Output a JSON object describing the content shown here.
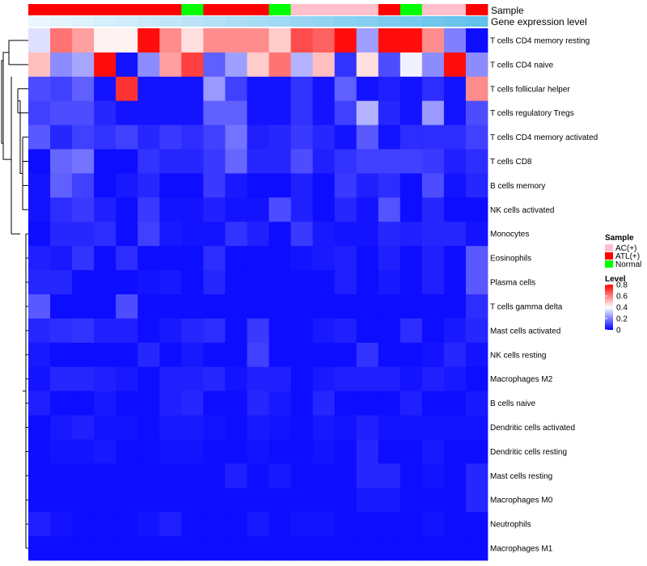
{
  "chart_data": {
    "type": "heatmap",
    "title": "",
    "annotations": {
      "sample_label": "Sample",
      "gene_expression_label": "Gene expression level",
      "sample_groups": [
        "ATL(+)",
        "ATL(+)",
        "ATL(+)",
        "ATL(+)",
        "ATL(+)",
        "ATL(+)",
        "ATL(+)",
        "Normal",
        "ATL(+)",
        "ATL(+)",
        "ATL(+)",
        "Normal",
        "AC(+)",
        "AC(+)",
        "AC(+)",
        "AC(+)",
        "ATL(+)",
        "Normal",
        "AC(+)",
        "AC(+)",
        "ATL(+)"
      ],
      "gene_expression_levels": [
        0.02,
        0.05,
        0.08,
        0.11,
        0.14,
        0.17,
        0.2,
        0.23,
        0.26,
        0.29,
        0.32,
        0.35,
        0.38,
        0.41,
        0.44,
        0.47,
        0.5,
        0.53,
        0.56,
        0.59,
        0.62
      ]
    },
    "rows": [
      "T cells CD4 memory resting",
      "T cells CD4 naive",
      "T cells follicular helper",
      "T cells regulatory  Tregs",
      "T cells CD4 memory activated",
      "T cells CD8",
      "B cells memory",
      "NK cells activated",
      "Monocytes",
      "Eosinophils",
      "Plasma cells",
      "T cells gamma delta",
      "Mast cells activated",
      "NK cells resting",
      "Macrophages M2",
      "B cells naive",
      "Dendritic cells activated",
      "Dendritic cells resting",
      "Mast cells resting",
      "Macrophages M0",
      "Neutrophils",
      "Macrophages M1"
    ],
    "values": [
      [
        0.35,
        0.62,
        0.55,
        0.42,
        0.42,
        0.78,
        0.58,
        0.45,
        0.58,
        0.58,
        0.58,
        0.48,
        0.68,
        0.65,
        0.78,
        0.25,
        0.78,
        0.78,
        0.58,
        0.2,
        0.02
      ],
      [
        0.5,
        0.22,
        0.26,
        0.78,
        0.03,
        0.22,
        0.55,
        0.7,
        0.15,
        0.25,
        0.48,
        0.62,
        0.28,
        0.5,
        0.08,
        0.45,
        0.12,
        0.38,
        0.22,
        0.78,
        0.22
      ],
      [
        0.12,
        0.1,
        0.15,
        0.03,
        0.72,
        0.03,
        0.03,
        0.03,
        0.24,
        0.1,
        0.03,
        0.03,
        0.08,
        0.03,
        0.15,
        0.03,
        0.05,
        0.03,
        0.07,
        0.03,
        0.58
      ],
      [
        0.1,
        0.12,
        0.12,
        0.06,
        0.03,
        0.03,
        0.03,
        0.03,
        0.15,
        0.15,
        0.03,
        0.03,
        0.08,
        0.03,
        0.1,
        0.28,
        0.06,
        0.03,
        0.24,
        0.03,
        0.12
      ],
      [
        0.14,
        0.06,
        0.1,
        0.08,
        0.1,
        0.06,
        0.09,
        0.07,
        0.1,
        0.18,
        0.05,
        0.06,
        0.09,
        0.06,
        0.03,
        0.14,
        0.03,
        0.07,
        0.07,
        0.07,
        0.1
      ],
      [
        0.02,
        0.16,
        0.18,
        0.02,
        0.02,
        0.08,
        0.06,
        0.06,
        0.09,
        0.16,
        0.06,
        0.06,
        0.12,
        0.05,
        0.08,
        0.1,
        0.1,
        0.1,
        0.09,
        0.05,
        0.07
      ],
      [
        0.03,
        0.15,
        0.1,
        0.02,
        0.04,
        0.06,
        0.02,
        0.02,
        0.09,
        0.04,
        0.02,
        0.02,
        0.05,
        0.02,
        0.09,
        0.05,
        0.07,
        0.02,
        0.12,
        0.03,
        0.06
      ],
      [
        0.03,
        0.07,
        0.09,
        0.05,
        0.02,
        0.09,
        0.03,
        0.03,
        0.05,
        0.03,
        0.03,
        0.12,
        0.05,
        0.02,
        0.06,
        0.03,
        0.13,
        0.02,
        0.06,
        0.02,
        0.02
      ],
      [
        0.02,
        0.06,
        0.06,
        0.07,
        0.02,
        0.1,
        0.04,
        0.03,
        0.03,
        0.08,
        0.05,
        0.02,
        0.09,
        0.04,
        0.03,
        0.03,
        0.06,
        0.05,
        0.06,
        0.06,
        0.03
      ],
      [
        0.05,
        0.04,
        0.08,
        0.02,
        0.07,
        0.02,
        0.02,
        0.02,
        0.07,
        0.02,
        0.02,
        0.02,
        0.03,
        0.04,
        0.05,
        0.02,
        0.05,
        0.02,
        0.05,
        0.02,
        0.14
      ],
      [
        0.06,
        0.06,
        0.02,
        0.02,
        0.02,
        0.03,
        0.04,
        0.02,
        0.06,
        0.02,
        0.02,
        0.02,
        0.02,
        0.02,
        0.05,
        0.02,
        0.04,
        0.02,
        0.05,
        0.02,
        0.14
      ],
      [
        0.14,
        0.02,
        0.02,
        0.02,
        0.12,
        0.02,
        0.02,
        0.02,
        0.02,
        0.02,
        0.02,
        0.02,
        0.02,
        0.02,
        0.02,
        0.02,
        0.02,
        0.02,
        0.02,
        0.02,
        0.07
      ],
      [
        0.06,
        0.07,
        0.08,
        0.05,
        0.05,
        0.02,
        0.04,
        0.06,
        0.07,
        0.02,
        0.09,
        0.02,
        0.02,
        0.04,
        0.05,
        0.02,
        0.02,
        0.07,
        0.02,
        0.04,
        0.06
      ],
      [
        0.04,
        0.02,
        0.02,
        0.02,
        0.02,
        0.06,
        0.02,
        0.04,
        0.02,
        0.02,
        0.1,
        0.02,
        0.02,
        0.02,
        0.02,
        0.08,
        0.02,
        0.02,
        0.03,
        0.06,
        0.03
      ],
      [
        0.03,
        0.06,
        0.06,
        0.05,
        0.04,
        0.02,
        0.05,
        0.05,
        0.06,
        0.03,
        0.05,
        0.05,
        0.02,
        0.04,
        0.05,
        0.05,
        0.05,
        0.03,
        0.05,
        0.04,
        0.02
      ],
      [
        0.05,
        0.02,
        0.02,
        0.04,
        0.02,
        0.02,
        0.05,
        0.06,
        0.02,
        0.02,
        0.06,
        0.04,
        0.02,
        0.06,
        0.02,
        0.02,
        0.02,
        0.05,
        0.02,
        0.02,
        0.04
      ],
      [
        0.02,
        0.04,
        0.05,
        0.03,
        0.03,
        0.02,
        0.04,
        0.04,
        0.03,
        0.02,
        0.04,
        0.03,
        0.02,
        0.04,
        0.03,
        0.05,
        0.03,
        0.03,
        0.03,
        0.03,
        0.03
      ],
      [
        0.02,
        0.03,
        0.03,
        0.04,
        0.02,
        0.02,
        0.03,
        0.03,
        0.02,
        0.02,
        0.03,
        0.02,
        0.02,
        0.03,
        0.02,
        0.06,
        0.02,
        0.02,
        0.04,
        0.02,
        0.02
      ],
      [
        0.02,
        0.02,
        0.02,
        0.02,
        0.02,
        0.02,
        0.02,
        0.02,
        0.02,
        0.05,
        0.02,
        0.04,
        0.02,
        0.02,
        0.02,
        0.06,
        0.06,
        0.02,
        0.03,
        0.02,
        0.06
      ],
      [
        0.02,
        0.02,
        0.02,
        0.02,
        0.02,
        0.02,
        0.02,
        0.02,
        0.02,
        0.02,
        0.02,
        0.02,
        0.02,
        0.02,
        0.02,
        0.04,
        0.04,
        0.02,
        0.02,
        0.02,
        0.06
      ],
      [
        0.05,
        0.03,
        0.02,
        0.02,
        0.02,
        0.03,
        0.05,
        0.02,
        0.02,
        0.02,
        0.04,
        0.02,
        0.03,
        0.03,
        0.02,
        0.02,
        0.02,
        0.02,
        0.03,
        0.02,
        0.02
      ],
      [
        0.02,
        0.02,
        0.02,
        0.02,
        0.02,
        0.02,
        0.02,
        0.02,
        0.02,
        0.02,
        0.02,
        0.02,
        0.02,
        0.02,
        0.02,
        0.02,
        0.02,
        0.02,
        0.02,
        0.02,
        0.02
      ]
    ],
    "color_scale": {
      "range": [
        0,
        0.8
      ],
      "stops": [
        {
          "value": 0,
          "color": "#0000ff"
        },
        {
          "value": 0.4,
          "color": "#ffffff"
        },
        {
          "value": 0.8,
          "color": "#ff0000"
        }
      ]
    },
    "legend": {
      "sample_title": "Sample",
      "sample_entries": [
        {
          "label": "AC(+)",
          "color": "#ffc0cb"
        },
        {
          "label": "ATL(+)",
          "color": "#ff0000"
        },
        {
          "label": "Normal",
          "color": "#00ff00"
        }
      ],
      "level_title": "Level",
      "level_ticks": [
        "0.8",
        "0.6",
        "0.4",
        "0.2",
        "0"
      ]
    },
    "row_dendrogram": true
  }
}
